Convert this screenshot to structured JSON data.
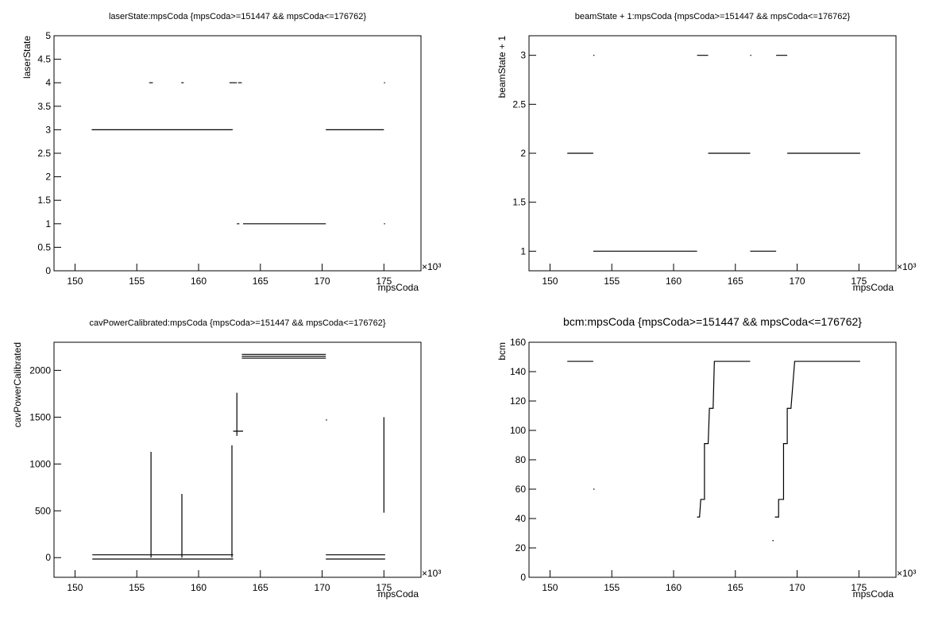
{
  "chart_data": [
    {
      "type": "line",
      "title": "laserState:mpsCoda {mpsCoda>=151447 && mpsCoda<=176762}",
      "x_label": "mpsCoda",
      "y_label": "laserState",
      "x_exponent": "×10³",
      "xlim": [
        148.3,
        178.0
      ],
      "xticks": [
        150,
        155,
        160,
        165,
        170,
        175
      ],
      "ylim": [
        0,
        5
      ],
      "yticks": [
        0,
        0.5,
        1,
        1.5,
        2,
        2.5,
        3,
        3.5,
        4,
        4.5,
        5
      ],
      "series": [
        {
          "color": "#000000",
          "x": [
            151.35,
            162.76,
            null,
            156.0,
            156.3,
            null,
            158.6,
            158.8,
            null,
            162.5,
            163.1,
            null,
            163.2,
            163.5,
            null,
            175.0,
            null,
            163.1,
            163.3,
            null,
            163.6,
            170.3,
            null,
            170.3,
            175.0,
            null,
            175.0
          ],
          "values": [
            3,
            3,
            null,
            4,
            4,
            null,
            4,
            4,
            null,
            4,
            4,
            null,
            4,
            4,
            null,
            4,
            null,
            1,
            1,
            null,
            1,
            1,
            null,
            3,
            3,
            null,
            1
          ]
        }
      ]
    },
    {
      "type": "line",
      "title": "beamState + 1:mpsCoda {mpsCoda>=151447 && mpsCoda<=176762}",
      "x_label": "mpsCoda",
      "y_label": "beamState + 1",
      "x_exponent": "×10³",
      "xlim": [
        148.3,
        178.0
      ],
      "xticks": [
        150,
        155,
        160,
        165,
        170,
        175
      ],
      "ylim": [
        0.8,
        3.2
      ],
      "yticks": [
        1,
        1.5,
        2,
        2.5,
        3
      ],
      "series": [
        {
          "color": "#000000",
          "x": [
            151.4,
            153.5,
            null,
            153.5,
            161.9,
            null,
            153.5,
            null,
            161.9,
            162.8,
            null,
            162.8,
            166.2,
            null,
            166.2,
            null,
            166.2,
            168.3,
            null,
            168.3,
            169.2,
            null,
            169.2,
            175.1
          ],
          "values": [
            2,
            2,
            null,
            1,
            1,
            null,
            3,
            null,
            3,
            3,
            null,
            2,
            2,
            null,
            3,
            null,
            1,
            1,
            null,
            3,
            3,
            null,
            2,
            2
          ]
        }
      ]
    },
    {
      "type": "line",
      "title": "cavPowerCalibrated:mpsCoda {mpsCoda>=151447 && mpsCoda<=176762}",
      "x_label": "mpsCoda",
      "y_label": "cavPowerCalibrated",
      "x_exponent": "×10³",
      "xlim": [
        148.3,
        178.0
      ],
      "xticks": [
        150,
        155,
        160,
        165,
        170,
        175
      ],
      "ylim": [
        -210,
        2300
      ],
      "yticks": [
        0,
        500,
        1000,
        1500,
        2000
      ],
      "series": [
        {
          "color": "#000000",
          "x": [
            151.4,
            162.8,
            null,
            151.4,
            162.8,
            null,
            170.3,
            175.1,
            null,
            170.3,
            175.1,
            null,
            163.5,
            170.3,
            null,
            163.5,
            170.3,
            null,
            163.5,
            170.3,
            null,
            156.15,
            156.15,
            null,
            158.65,
            158.65,
            null,
            162.7,
            162.7,
            null,
            163.1,
            163.1,
            null,
            162.8,
            163.6,
            null,
            170.3,
            null,
            175.0,
            175.0
          ],
          "values": [
            30,
            30,
            null,
            -15,
            -15,
            null,
            30,
            30,
            null,
            -15,
            -15,
            null,
            2170,
            2170,
            null,
            2150,
            2150,
            null,
            2130,
            2130,
            null,
            0,
            1130,
            null,
            0,
            680,
            null,
            0,
            1200,
            null,
            1300,
            1760,
            null,
            1350,
            1350,
            null,
            1470,
            null,
            480,
            1500
          ]
        }
      ]
    },
    {
      "type": "line",
      "title": "bcm:mpsCoda {mpsCoda>=151447 && mpsCoda<=176762}",
      "x_label": "mpsCoda",
      "y_label": "bcm",
      "x_exponent": "×10³",
      "xlim": [
        148.3,
        178.0
      ],
      "xticks": [
        150,
        155,
        160,
        165,
        170,
        175
      ],
      "ylim": [
        0,
        160
      ],
      "yticks": [
        0,
        20,
        40,
        60,
        80,
        100,
        120,
        140,
        160
      ],
      "series": [
        {
          "color": "#000000",
          "x": [
            151.4,
            153.5,
            null,
            153.5,
            null,
            161.9,
            162.1,
            162.2,
            162.5,
            162.5,
            162.8,
            162.9,
            163.2,
            163.3,
            166.2,
            null,
            168.2,
            168.5,
            168.5,
            168.9,
            168.9,
            169.2,
            169.2,
            169.5,
            169.8,
            175.1,
            null,
            168.0
          ],
          "values": [
            147,
            147,
            null,
            60,
            null,
            41,
            41,
            53,
            53,
            91,
            91,
            115,
            115,
            147,
            147,
            null,
            41,
            41,
            53,
            53,
            91,
            91,
            115,
            115,
            147,
            147,
            null,
            25
          ]
        }
      ]
    }
  ]
}
